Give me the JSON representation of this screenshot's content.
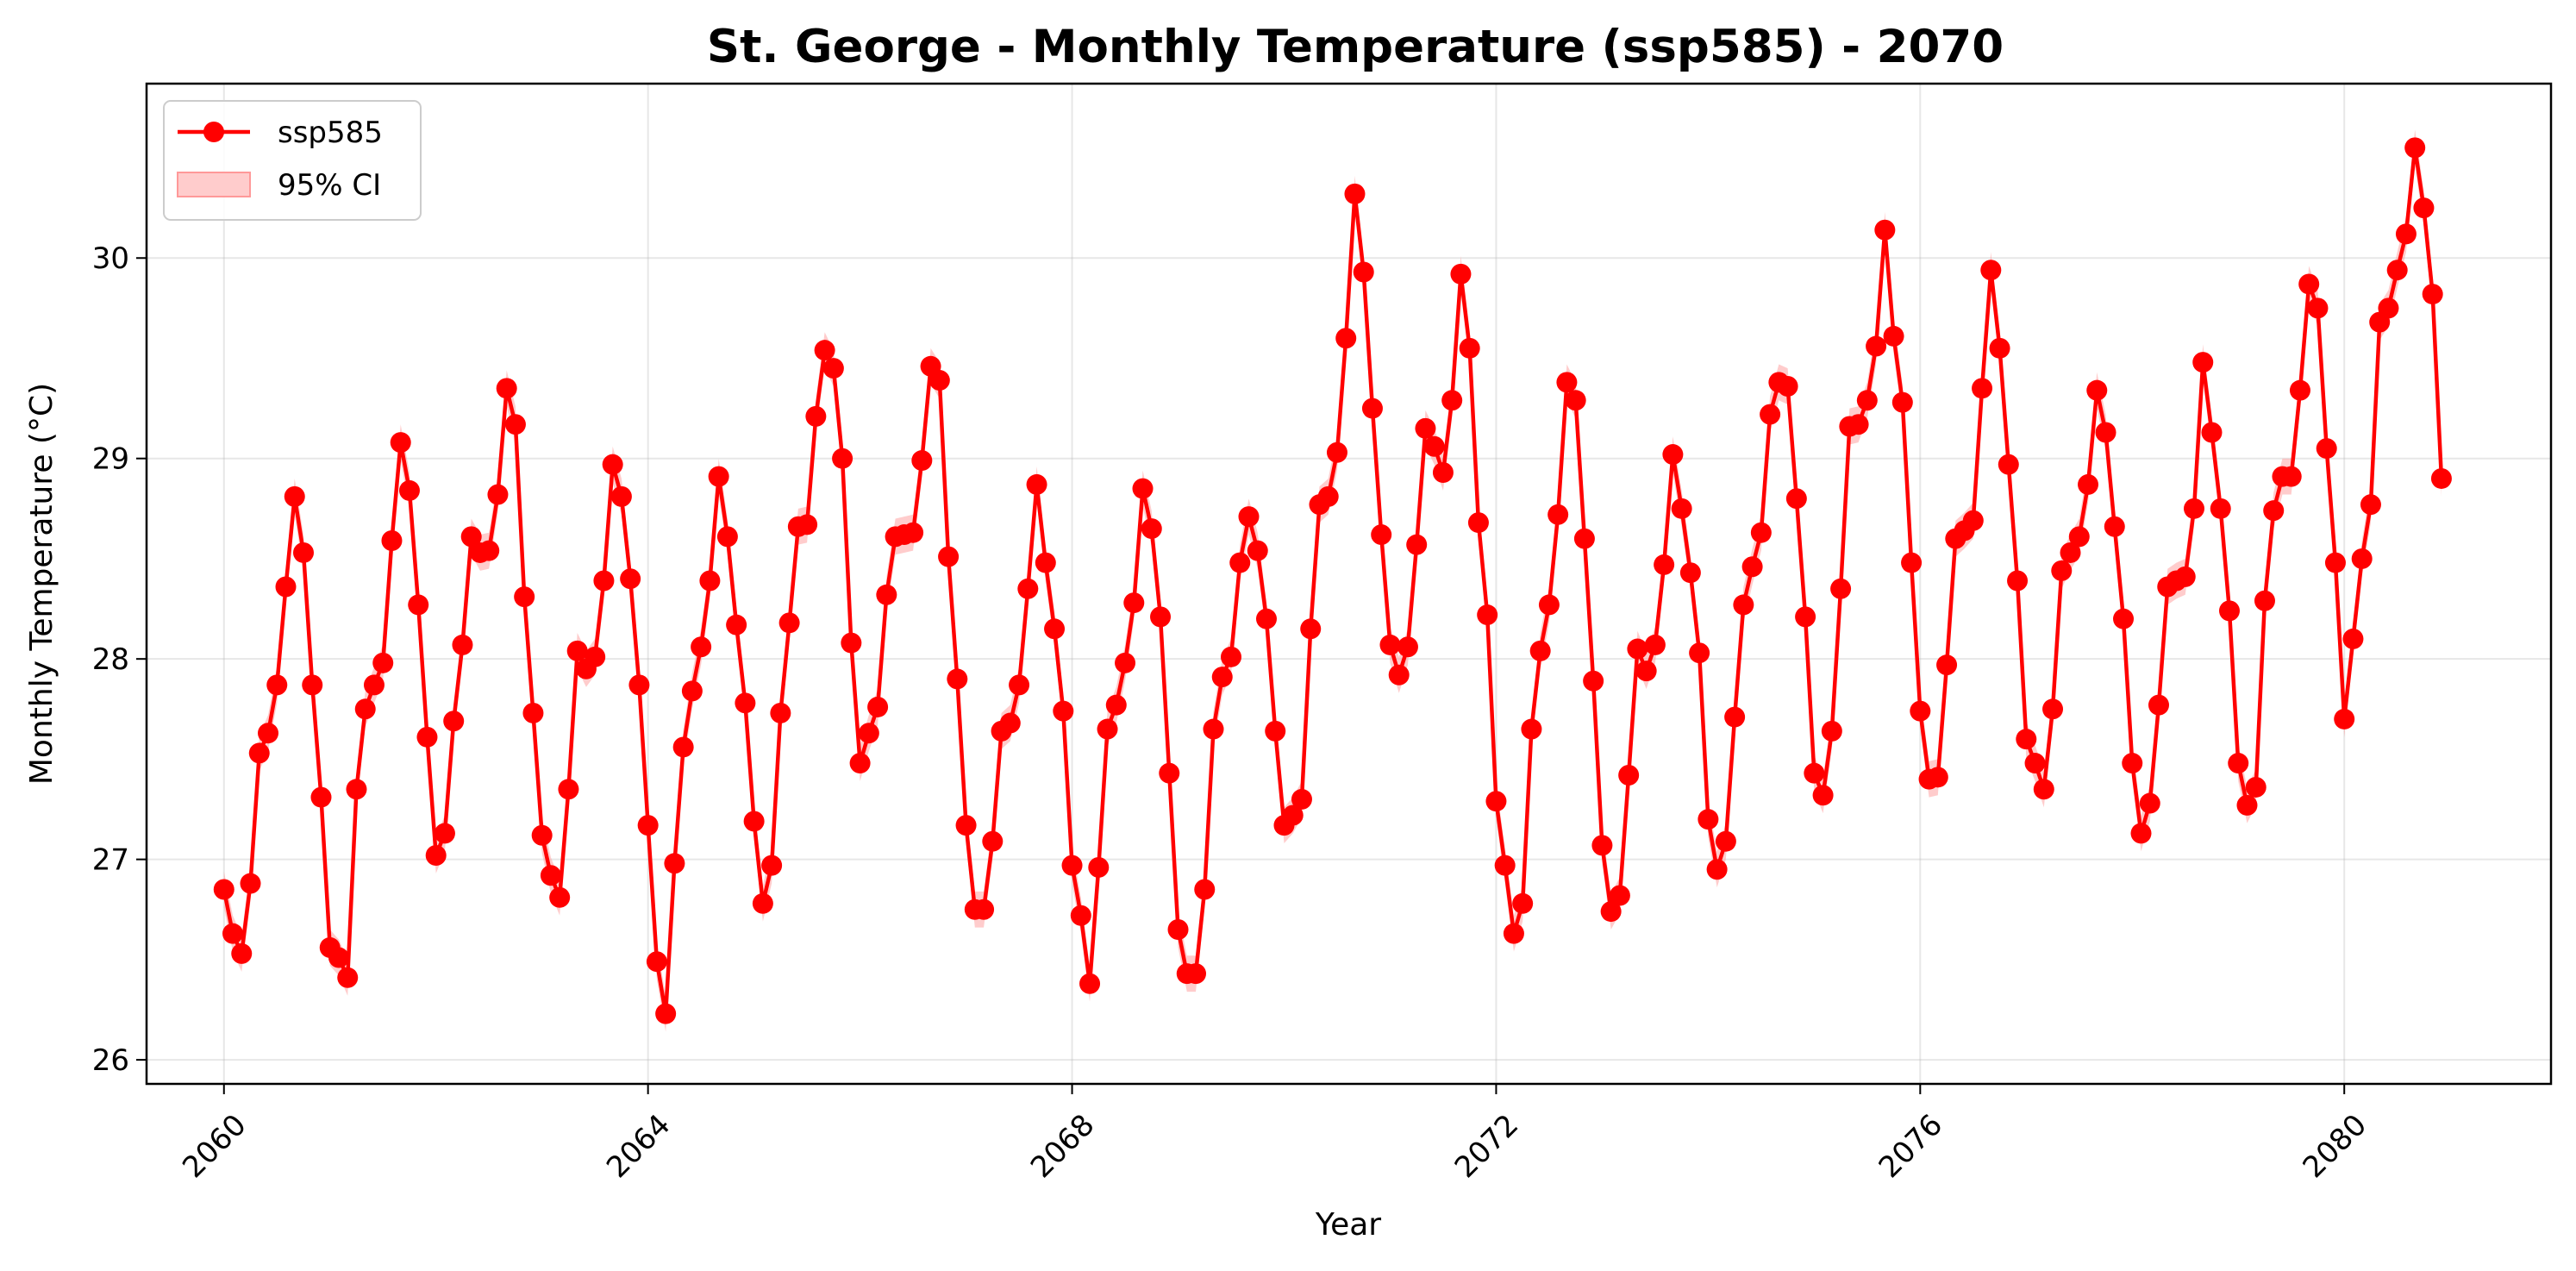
{
  "chart_data": {
    "type": "line",
    "title": "St. George - Monthly Temperature (ssp585) - 2070",
    "xlabel": "Year",
    "ylabel": "Monthly Temperature (°C)",
    "xlim": [
      2059.27,
      2081.95
    ],
    "ylim": [
      25.88,
      30.87
    ],
    "x_ticks": [
      2060,
      2064,
      2068,
      2072,
      2076,
      2080
    ],
    "y_ticks": [
      26,
      27,
      28,
      29,
      30
    ],
    "grid": true,
    "legend_position": "top-left",
    "x_start": 2060,
    "x_step_months": 1,
    "series": [
      {
        "name": "ssp585",
        "color": "#ff0000",
        "marker": "circle",
        "values": [
          26.85,
          26.63,
          26.53,
          26.88,
          27.53,
          27.63,
          27.87,
          28.36,
          28.81,
          28.53,
          27.87,
          27.31,
          26.56,
          26.51,
          26.41,
          27.35,
          27.75,
          27.87,
          27.98,
          28.59,
          29.08,
          28.84,
          28.27,
          27.61,
          27.02,
          27.13,
          27.69,
          28.07,
          28.61,
          28.53,
          28.54,
          28.82,
          29.35,
          29.17,
          28.31,
          27.73,
          27.12,
          26.92,
          26.81,
          27.35,
          28.04,
          27.95,
          28.01,
          28.39,
          28.97,
          28.81,
          28.4,
          27.87,
          27.17,
          26.49,
          26.23,
          26.98,
          27.56,
          27.84,
          28.06,
          28.39,
          28.91,
          28.61,
          28.17,
          27.78,
          27.19,
          26.78,
          26.97,
          27.73,
          28.18,
          28.66,
          28.67,
          29.21,
          29.54,
          29.45,
          29.0,
          28.08,
          27.48,
          27.63,
          27.76,
          28.32,
          28.61,
          28.62,
          28.63,
          28.99,
          29.46,
          29.39,
          28.51,
          27.9,
          27.17,
          26.75,
          26.75,
          27.09,
          27.64,
          27.68,
          27.87,
          28.35,
          28.87,
          28.48,
          28.15,
          27.74,
          26.97,
          26.72,
          26.38,
          26.96,
          27.65,
          27.77,
          27.98,
          28.28,
          28.85,
          28.65,
          28.21,
          27.43,
          26.65,
          26.43,
          26.43,
          26.85,
          27.65,
          27.91,
          28.01,
          28.48,
          28.71,
          28.54,
          28.2,
          27.64,
          27.17,
          27.22,
          27.3,
          28.15,
          28.77,
          28.81,
          29.03,
          29.6,
          30.32,
          29.93,
          29.25,
          28.62,
          28.07,
          27.92,
          28.06,
          28.57,
          29.15,
          29.06,
          28.93,
          29.29,
          29.92,
          29.55,
          28.68,
          28.22,
          27.29,
          26.97,
          26.63,
          26.78,
          27.65,
          28.04,
          28.27,
          28.72,
          29.38,
          29.29,
          28.6,
          27.89,
          27.07,
          26.74,
          26.82,
          27.42,
          28.05,
          27.94,
          28.07,
          28.47,
          29.02,
          28.75,
          28.43,
          28.03,
          27.2,
          26.95,
          27.09,
          27.71,
          28.27,
          28.46,
          28.63,
          29.22,
          29.38,
          29.36,
          28.8,
          28.21,
          27.43,
          27.32,
          27.64,
          28.35,
          29.16,
          29.17,
          29.29,
          29.56,
          30.14,
          29.61,
          29.28,
          28.48,
          27.74,
          27.4,
          27.41,
          27.97,
          28.6,
          28.64,
          28.69,
          29.35,
          29.94,
          29.55,
          28.97,
          28.39,
          27.6,
          27.48,
          27.35,
          27.75,
          28.44,
          28.53,
          28.61,
          28.87,
          29.34,
          29.13,
          28.66,
          28.2,
          27.48,
          27.13,
          27.28,
          27.77,
          28.36,
          28.39,
          28.41,
          28.75,
          29.48,
          29.13,
          28.75,
          28.24,
          27.48,
          27.27,
          27.36,
          28.29,
          28.74,
          28.91,
          28.91,
          29.34,
          29.87,
          29.75,
          29.05,
          28.48,
          27.7,
          28.1,
          28.5,
          28.77,
          29.68,
          29.75,
          29.94,
          30.12,
          30.55,
          30.25,
          29.82,
          28.9
        ]
      }
    ],
    "ci_series": {
      "name": "95% CI",
      "color": "#ff9999",
      "half_width": 0.09
    }
  }
}
